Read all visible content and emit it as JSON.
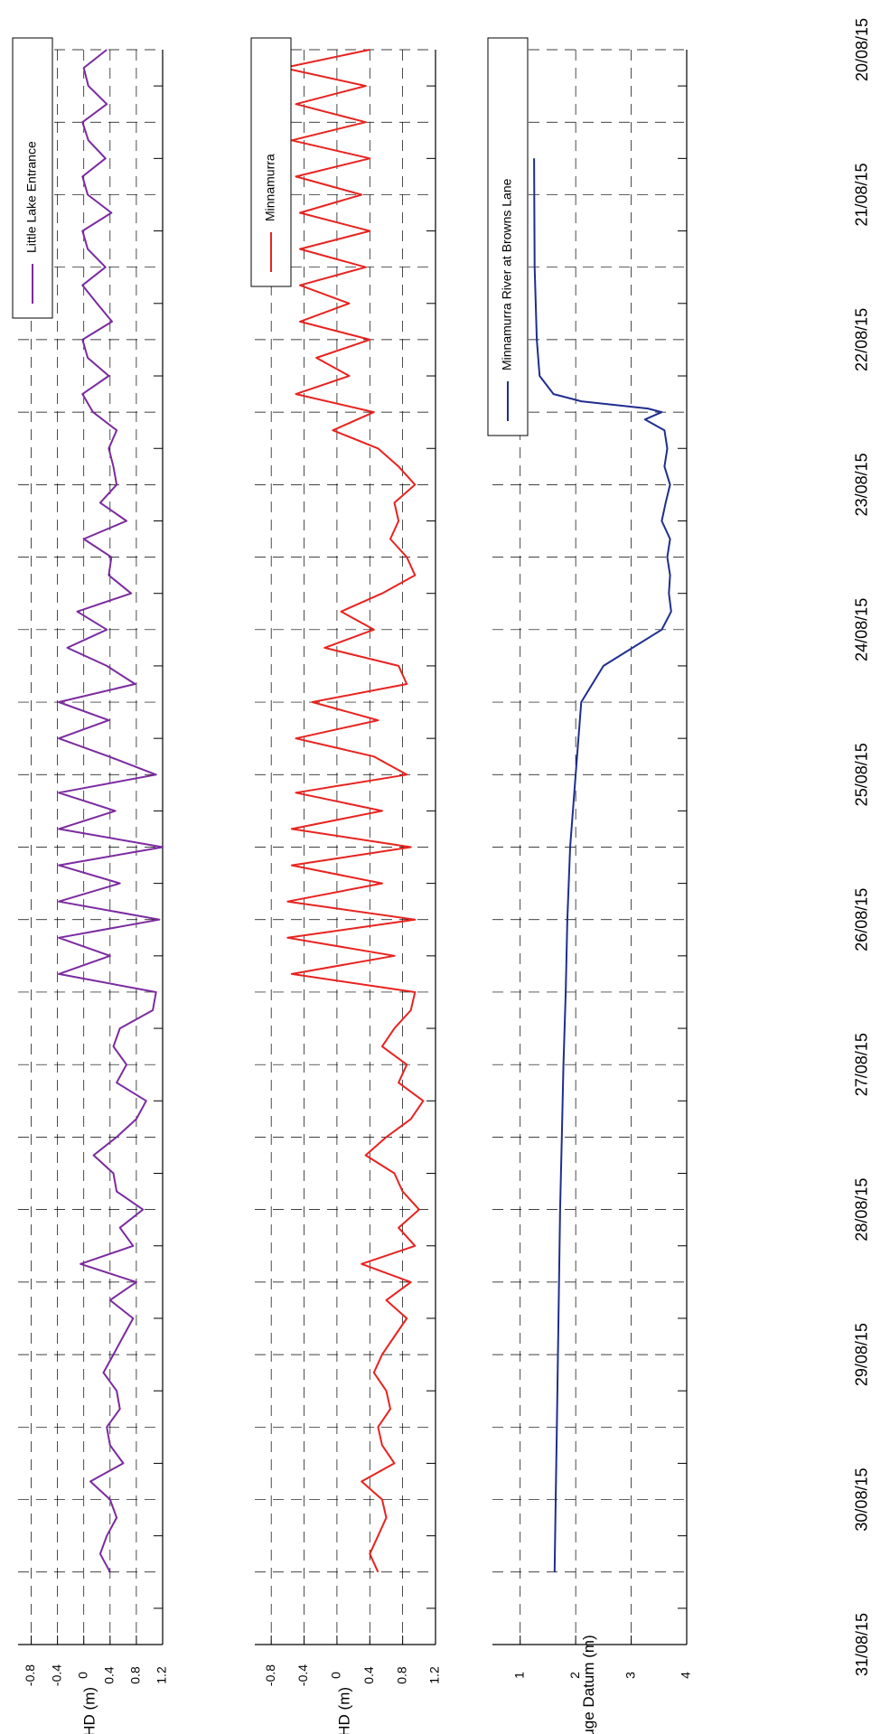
{
  "chart_data": [
    {
      "type": "line",
      "ylabel": "AHD (m)",
      "ylim": [
        -1.0,
        1.2
      ],
      "yticks": [
        1.2,
        0.8,
        0.4,
        0,
        -0.4,
        -0.8
      ],
      "ytick_labels": [
        "1.2",
        "0.8",
        "0.4",
        "0",
        "-0.4",
        "-0.8"
      ],
      "legend_position": "top-right",
      "grid": true,
      "series": [
        {
          "name": "Little Lake Entrance",
          "color": "#7b2aa0",
          "x": [
            0,
            0.25,
            0.5,
            0.75,
            1,
            1.25,
            1.5,
            1.75,
            2,
            2.25,
            2.5,
            2.75,
            3,
            3.25,
            3.5,
            3.75,
            4,
            4.25,
            4.5,
            4.75,
            5,
            5.25,
            5.5,
            5.75,
            6,
            6.25,
            6.5,
            6.75,
            7,
            7.25,
            7.5,
            7.75,
            8,
            8.25,
            8.5,
            8.75,
            9,
            9.25,
            9.5,
            9.75,
            10,
            10.25,
            10.5,
            10.75,
            11,
            11.25,
            11.5,
            11.75,
            12,
            12.25,
            12.5,
            12.75,
            13,
            13.25,
            13.5,
            13.75,
            14,
            14.25,
            14.5,
            14.75,
            15,
            15.25,
            15.5,
            15.75,
            16,
            16.25,
            16.5,
            16.75,
            17,
            17.25,
            17.5,
            17.75,
            18,
            18.25,
            18.5,
            18.75,
            19,
            19.25,
            19.5,
            19.75,
            20,
            20.25,
            20.5,
            20.75,
            21
          ],
          "values": [
            0.35,
            0.0,
            0.07,
            0.35,
            -0.02,
            0.07,
            0.33,
            -0.02,
            0.06,
            0.42,
            -0.02,
            0.06,
            0.33,
            -0.02,
            0.2,
            0.43,
            -0.02,
            0.06,
            0.38,
            -0.02,
            0.14,
            0.5,
            0.38,
            0.45,
            0.5,
            0.25,
            0.65,
            0.0,
            0.42,
            0.38,
            0.72,
            -0.1,
            0.35,
            -0.25,
            0.35,
            0.78,
            -0.38,
            0.38,
            -0.38,
            0.38,
            1.1,
            -0.38,
            0.48,
            -0.38,
            1.2,
            -0.38,
            0.55,
            -0.38,
            1.15,
            -0.38,
            0.4,
            -0.38,
            1.1,
            1.05,
            0.55,
            0.45,
            0.65,
            0.5,
            0.95,
            0.8,
            0.5,
            0.15,
            0.45,
            0.5,
            0.9,
            0.55,
            0.75,
            -0.05,
            0.8,
            0.4,
            0.75,
            0.6,
            0.45,
            0.3,
            0.5,
            0.55,
            0.35,
            0.4,
            0.6,
            0.1,
            0.4,
            0.5,
            0.35,
            0.25,
            0.4
          ]
        }
      ]
    },
    {
      "type": "line",
      "ylabel": "AHD (m)",
      "ylim": [
        -1.0,
        1.2
      ],
      "yticks": [
        1.2,
        0.8,
        0.4,
        0,
        -0.4,
        -0.8
      ],
      "ytick_labels": [
        "1.2",
        "0.8",
        "0.4",
        "0",
        "-0.4",
        "-0.8"
      ],
      "legend_position": "top-right",
      "grid": true,
      "series": [
        {
          "name": "Minnamurra",
          "color": "#e8231f",
          "x": [
            0,
            0.25,
            0.5,
            0.75,
            1,
            1.25,
            1.5,
            1.75,
            2,
            2.25,
            2.5,
            2.75,
            3,
            3.25,
            3.5,
            3.75,
            4,
            4.25,
            4.5,
            4.75,
            5,
            5.25,
            5.5,
            5.75,
            6,
            6.25,
            6.5,
            6.75,
            7,
            7.25,
            7.5,
            7.75,
            8,
            8.25,
            8.5,
            8.75,
            9,
            9.25,
            9.5,
            9.75,
            10,
            10.25,
            10.5,
            10.75,
            11,
            11.25,
            11.5,
            11.75,
            12,
            12.25,
            12.5,
            12.75,
            13,
            13.25,
            13.5,
            13.75,
            14,
            14.25,
            14.5,
            14.75,
            15,
            15.25,
            15.5,
            15.75,
            16,
            16.25,
            16.5,
            16.75,
            17,
            17.25,
            17.5,
            17.75,
            18,
            18.25,
            18.5,
            18.75,
            19,
            19.25,
            19.5,
            19.75,
            20,
            20.25,
            20.5,
            20.75,
            21
          ],
          "values": [
            0.4,
            -0.65,
            0.35,
            -0.5,
            0.35,
            -0.55,
            0.4,
            -0.5,
            0.3,
            -0.45,
            0.4,
            -0.45,
            0.35,
            -0.45,
            0.15,
            -0.45,
            0.4,
            -0.25,
            0.15,
            -0.5,
            0.45,
            -0.05,
            0.5,
            0.75,
            0.95,
            0.7,
            0.75,
            0.65,
            0.85,
            0.95,
            0.55,
            0.05,
            0.45,
            -0.15,
            0.75,
            0.85,
            -0.3,
            0.5,
            -0.5,
            0.45,
            0.85,
            -0.5,
            0.55,
            -0.55,
            0.9,
            -0.55,
            0.55,
            -0.6,
            0.95,
            -0.6,
            0.7,
            -0.55,
            0.95,
            0.9,
            0.7,
            0.55,
            0.85,
            0.75,
            1.05,
            0.9,
            0.6,
            0.35,
            0.7,
            0.8,
            1.0,
            0.75,
            0.95,
            0.3,
            0.9,
            0.6,
            0.85,
            0.7,
            0.55,
            0.45,
            0.6,
            0.65,
            0.5,
            0.55,
            0.7,
            0.3,
            0.55,
            0.6,
            0.5,
            0.4,
            0.5
          ]
        }
      ]
    },
    {
      "type": "line",
      "ylabel": "Local Gauge Datum (m)",
      "ylim": [
        0.5,
        4
      ],
      "yticks": [
        4,
        3,
        2,
        1
      ],
      "ytick_labels": [
        "4",
        "3",
        "2",
        "1"
      ],
      "legend_position": "top-right",
      "grid": true,
      "series": [
        {
          "name": "Minnamurra River at Browns Lane",
          "color": "#1f2e8f",
          "x": [
            1.5,
            3,
            4,
            4.5,
            4.75,
            4.85,
            4.95,
            5.0,
            5.1,
            5.25,
            5.5,
            5.75,
            6,
            6.25,
            6.5,
            6.75,
            7,
            7.25,
            7.5,
            7.75,
            8,
            8.5,
            9,
            10,
            11,
            12,
            13,
            14,
            15,
            16,
            17,
            18,
            19,
            20,
            21
          ],
          "values": [
            1.25,
            1.26,
            1.3,
            1.35,
            1.6,
            2.1,
            3.3,
            3.55,
            3.25,
            3.6,
            3.65,
            3.6,
            3.7,
            3.62,
            3.55,
            3.7,
            3.65,
            3.7,
            3.68,
            3.72,
            3.55,
            2.5,
            2.1,
            2.0,
            1.9,
            1.85,
            1.82,
            1.78,
            1.75,
            1.72,
            1.7,
            1.68,
            1.66,
            1.64,
            1.62
          ]
        }
      ]
    }
  ],
  "xaxis": {
    "tick_labels": [
      "20/08/15",
      "21/08/15",
      "22/08/15",
      "23/08/15",
      "24/08/15",
      "25/08/15",
      "26/08/15",
      "27/08/15",
      "28/08/15",
      "29/08/15",
      "30/08/15",
      "31/08/15"
    ],
    "xlim_days": [
      0,
      22
    ]
  },
  "colors": {
    "grid": "#000000",
    "axis": "#000000"
  }
}
